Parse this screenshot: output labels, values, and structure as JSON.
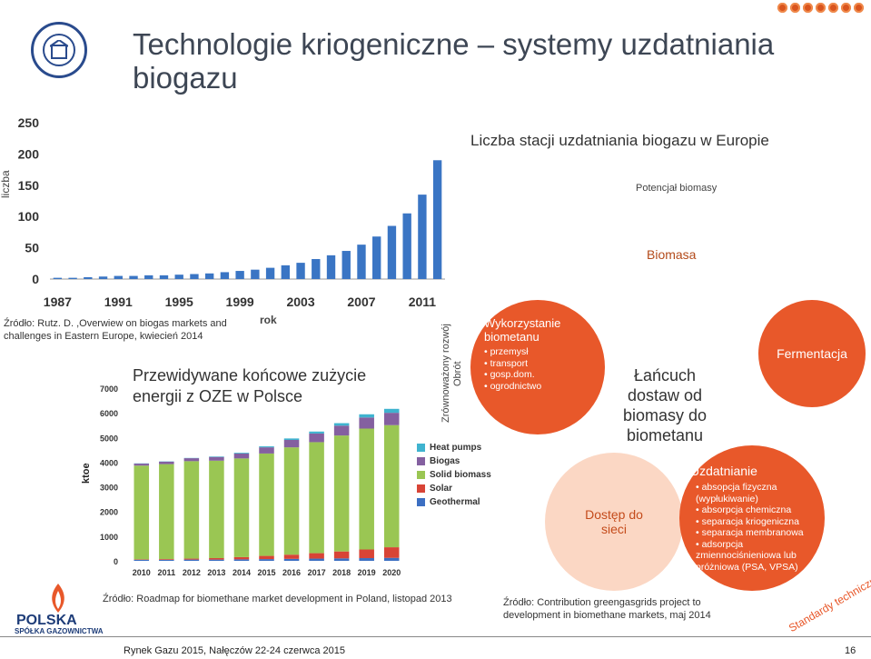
{
  "header": {
    "title": "Technologie kriogeniczne – systemy uzdatniania biogazu"
  },
  "chart1": {
    "ylabel": "liczba",
    "xlabel": "rok",
    "yticks": [
      "0",
      "50",
      "100",
      "150",
      "200",
      "250"
    ],
    "xticks": [
      "1987",
      "1991",
      "1995",
      "1999",
      "2003",
      "2007",
      "2011"
    ],
    "heading": "Liczba stacji uzdatniania biogazu w Europie",
    "source": "Źródło: Rutz. D. ,Overwiew on biogas markets and challenges in Eastern Europe, kwiecień 2014"
  },
  "chart_data": [
    {
      "type": "bar",
      "categories": [
        "1987",
        "1988",
        "1989",
        "1990",
        "1991",
        "1992",
        "1993",
        "1994",
        "1995",
        "1996",
        "1997",
        "1998",
        "1999",
        "2000",
        "2001",
        "2002",
        "2003",
        "2004",
        "2005",
        "2006",
        "2007",
        "2008",
        "2009",
        "2010",
        "2011",
        "2012"
      ],
      "values": [
        2,
        2,
        3,
        4,
        5,
        5,
        6,
        6,
        7,
        8,
        9,
        11,
        13,
        15,
        18,
        22,
        26,
        32,
        38,
        45,
        55,
        68,
        85,
        105,
        135,
        190
      ],
      "ylabel": "liczba",
      "xlabel": "rok",
      "ylim": [
        0,
        250
      ],
      "color": "#3a75c4"
    },
    {
      "type": "bar",
      "stacked": true,
      "title": "Przewidywane końcowe zużycie energii z OZE w Polsce",
      "ylabel": "ktoe",
      "ylim": [
        0,
        7000
      ],
      "categories": [
        "2010",
        "2011",
        "2012",
        "2013",
        "2014",
        "2015",
        "2016",
        "2017",
        "2018",
        "2019",
        "2020"
      ],
      "series": [
        {
          "name": "Geothermal",
          "color": "#3c6fc2",
          "values": [
            40,
            40,
            50,
            50,
            60,
            70,
            80,
            90,
            100,
            110,
            120
          ]
        },
        {
          "name": "Solar",
          "color": "#d84436",
          "values": [
            20,
            30,
            40,
            60,
            90,
            130,
            170,
            220,
            280,
            350,
            430
          ]
        },
        {
          "name": "Solid biomass",
          "color": "#9ac653",
          "values": [
            3800,
            3850,
            3950,
            3950,
            4000,
            4150,
            4350,
            4500,
            4700,
            4900,
            4950
          ]
        },
        {
          "name": "Biogas",
          "color": "#8460a0",
          "values": [
            80,
            100,
            120,
            150,
            200,
            250,
            300,
            350,
            400,
            450,
            500
          ]
        },
        {
          "name": "Heat pumps",
          "color": "#3fb3cf",
          "values": [
            10,
            10,
            10,
            20,
            30,
            40,
            60,
            80,
            100,
            130,
            160
          ]
        }
      ]
    }
  ],
  "chart2": {
    "title": "Przewidywane końcowe zużycie energii z OZE w Polsce",
    "ylabel": "ktoe",
    "yticks": [
      "0",
      "1000",
      "2000",
      "3000",
      "4000",
      "5000",
      "6000",
      "7000"
    ],
    "xticks": [
      "2010",
      "2011",
      "2012",
      "2013",
      "2014",
      "2015",
      "2016",
      "2017",
      "2018",
      "2019",
      "2020"
    ],
    "legend": [
      "Heat pumps",
      "Biogas",
      "Solid biomass",
      "Solar",
      "Geothermal"
    ],
    "source": "Źródło: Roadmap for biomethane market development in Poland, listopad 2013"
  },
  "cycle": {
    "potential": "Potencjał biomasy",
    "biomasa": "Biomasa",
    "side_label_1": "Zrównoważony rozwój",
    "side_label_2": "Obrót",
    "wykorzystanie_title": "Wykorzystanie biometanu",
    "wykorzystanie_items": [
      "przemysł",
      "transport",
      "gosp.dom.",
      "ogrodnictwo"
    ],
    "center": "Łańcuch dostaw od biomasy do biometanu",
    "fermentacja": "Fermentacja",
    "dostep": "Dostęp do sieci",
    "uzdatnianie_title": "Uzdatnianie",
    "uzdatnianie_items": [
      "absopcja fizyczna (wypłukiwanie)",
      "absorpcja chemiczna",
      "separacja kriogeniczna",
      "separacja membranowa",
      "adsorpcja zmiennociśnieniowa lub próżniowa (PSA, VPSA)"
    ],
    "standardy": "Standardy techniczne",
    "source": "Źródło: Contribution greengasgrids project to development in biomethane markets, maj 2014"
  },
  "logos": {
    "psg_line1": "POLSKA",
    "psg_line2": "SPÓŁKA GAZOWNICTWA"
  },
  "footer": {
    "event": "Rynek Gazu 2015, Nałęczów 22-24 czerwca 2015",
    "page": "16"
  },
  "colors": {
    "title": "#3d4654",
    "accent_orange": "#d9541e",
    "bubble_orange": "#e8582a",
    "bubble_light": "#fbd7c4"
  }
}
